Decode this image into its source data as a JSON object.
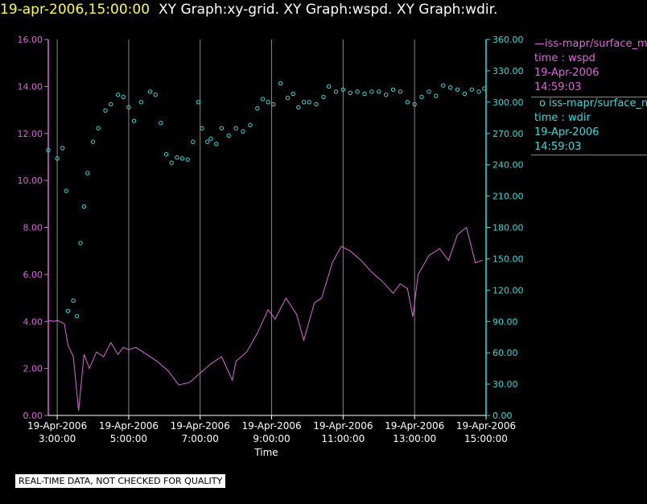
{
  "header": {
    "timestamp": "19-apr-2006,15:00:00",
    "graphs": "XY Graph:xy-grid.  XY Graph:wspd.  XY Graph:wdir."
  },
  "legend": {
    "wspd": {
      "line1": "iss-mapr/surface_m",
      "line2": "time : wspd",
      "line3": "19-Apr-2006",
      "line4": "14:59:03"
    },
    "wdir": {
      "line1": "iss-mapr/surface_m",
      "line2": "time : wdir",
      "line3": "19-Apr-2006",
      "line4": "14:59:03"
    }
  },
  "notice": "REAL-TIME DATA, NOT CHECKED FOR QUALITY",
  "colors": {
    "wspd": "#dd66dd",
    "wdir": "#33dddd",
    "grid": "#888888",
    "title_timestamp": "#ffff33"
  },
  "chart_data": {
    "type": "line",
    "xlabel": "Time",
    "xlim": [
      2.75,
      15.0
    ],
    "x_ticks": [
      {
        "x": 3,
        "date": "19-Apr-2006",
        "time": "3:00:00"
      },
      {
        "x": 5,
        "date": "19-Apr-2006",
        "time": "5:00:00"
      },
      {
        "x": 7,
        "date": "19-Apr-2006",
        "time": "7:00:00"
      },
      {
        "x": 9,
        "date": "19-Apr-2006",
        "time": "9:00:00"
      },
      {
        "x": 11,
        "date": "19-Apr-2006",
        "time": "11:00:00"
      },
      {
        "x": 13,
        "date": "19-Apr-2006",
        "time": "13:00:00"
      },
      {
        "x": 15,
        "date": "19-Apr-2006",
        "time": "15:00:00"
      }
    ],
    "y_left": {
      "lim": [
        0,
        16
      ],
      "ticks": [
        "0.00",
        "2.00",
        "4.00",
        "6.00",
        "8.00",
        "10.00",
        "12.00",
        "14.00",
        "16.00"
      ]
    },
    "y_right": {
      "lim": [
        0,
        360
      ],
      "ticks": [
        "0.00",
        "30.00",
        "60.00",
        "90.00",
        "120.00",
        "150.00",
        "180.00",
        "210.00",
        "240.00",
        "270.00",
        "300.00",
        "330.00",
        "360.00"
      ]
    },
    "grid": "vertical",
    "series": [
      {
        "name": "iss-mapr/surface_m",
        "label": "time : wspd",
        "axis": "left",
        "style": "line",
        "x": [
          2.75,
          2.9,
          3.0,
          3.2,
          3.3,
          3.45,
          3.6,
          3.75,
          3.9,
          4.1,
          4.3,
          4.5,
          4.7,
          4.85,
          5.0,
          5.2,
          5.5,
          5.8,
          6.1,
          6.4,
          6.7,
          7.0,
          7.3,
          7.6,
          7.9,
          8.0,
          8.3,
          8.6,
          8.9,
          9.1,
          9.4,
          9.7,
          9.9,
          10.2,
          10.4,
          10.7,
          10.95,
          11.2,
          11.5,
          11.8,
          12.1,
          12.4,
          12.6,
          12.8,
          12.95,
          13.1,
          13.4,
          13.7,
          13.95,
          14.2,
          14.45,
          14.7,
          14.9
        ],
        "y": [
          4.05,
          4.0,
          4.05,
          3.9,
          3.0,
          2.5,
          0.2,
          2.6,
          2.0,
          2.7,
          2.5,
          3.1,
          2.6,
          2.9,
          2.8,
          2.9,
          2.6,
          2.3,
          1.9,
          1.3,
          1.4,
          1.8,
          2.2,
          2.5,
          1.5,
          2.3,
          2.7,
          3.5,
          4.5,
          4.1,
          5.0,
          4.3,
          3.2,
          4.8,
          5.0,
          6.5,
          7.2,
          7.0,
          6.6,
          6.1,
          5.7,
          5.2,
          5.6,
          5.4,
          4.2,
          6.0,
          6.8,
          7.1,
          6.6,
          7.7,
          8.0,
          6.5,
          6.6
        ]
      },
      {
        "name": "iss-mapr/surface_m",
        "label": "time : wdir",
        "axis": "right",
        "style": "circles",
        "x": [
          2.75,
          3.0,
          3.15,
          3.25,
          3.3,
          3.45,
          3.55,
          3.65,
          3.75,
          3.85,
          4.0,
          4.15,
          4.35,
          4.5,
          4.7,
          4.85,
          5.0,
          5.15,
          5.35,
          5.6,
          5.75,
          5.9,
          6.05,
          6.2,
          6.35,
          6.5,
          6.65,
          6.8,
          6.95,
          7.05,
          7.2,
          7.3,
          7.45,
          7.6,
          7.8,
          8.0,
          8.2,
          8.4,
          8.6,
          8.75,
          8.9,
          9.05,
          9.25,
          9.45,
          9.6,
          9.75,
          9.9,
          10.05,
          10.25,
          10.45,
          10.6,
          10.8,
          11.0,
          11.2,
          11.4,
          11.6,
          11.8,
          12.0,
          12.2,
          12.4,
          12.6,
          12.8,
          13.0,
          13.2,
          13.4,
          13.6,
          13.8,
          14.0,
          14.2,
          14.4,
          14.6,
          14.8,
          14.95
        ],
        "y": [
          254,
          246,
          256,
          215,
          100,
          110,
          95,
          165,
          200,
          232,
          262,
          275,
          292,
          298,
          307,
          305,
          295,
          282,
          300,
          310,
          307,
          280,
          250,
          242,
          247,
          246,
          245,
          262,
          300,
          275,
          262,
          265,
          260,
          275,
          268,
          275,
          272,
          278,
          294,
          303,
          300,
          298,
          318,
          304,
          308,
          295,
          300,
          300,
          298,
          305,
          315,
          310,
          312,
          309,
          310,
          308,
          310,
          310,
          307,
          312,
          310,
          300,
          298,
          305,
          310,
          306,
          316,
          314,
          312,
          308,
          312,
          310,
          313
        ]
      }
    ]
  }
}
